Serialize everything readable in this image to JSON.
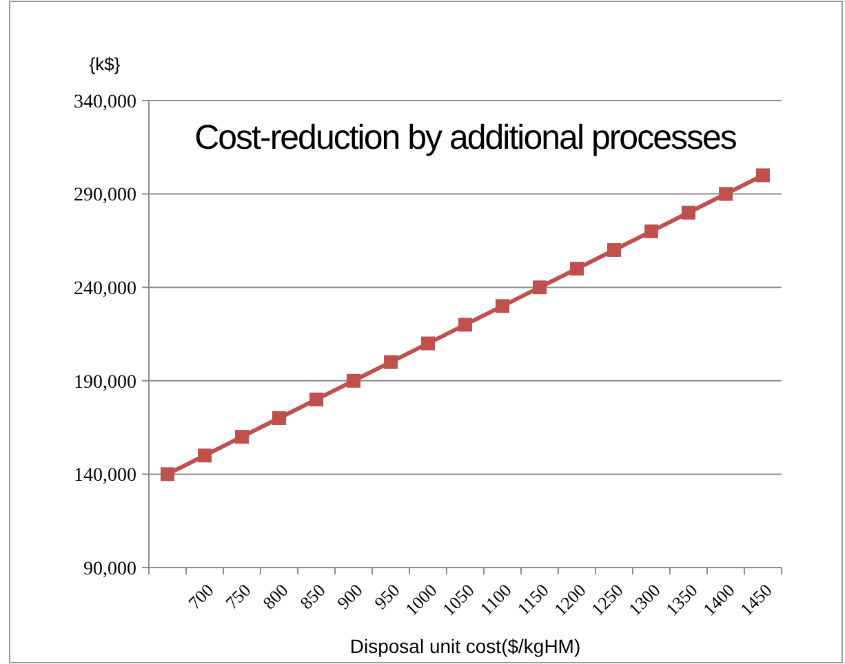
{
  "chart_data": {
    "type": "line",
    "title": "Cost-reduction by additional processes",
    "xlabel": "Disposal unit cost($/kgHM)",
    "ylabel": "{k$}",
    "categories": [
      null,
      "700",
      "750",
      "800",
      "850",
      "900",
      "950",
      "1000",
      "1050",
      "1100",
      "1150",
      "1200",
      "1250",
      "1300",
      "1350",
      "1400",
      "1450"
    ],
    "series": [
      {
        "color": "#c0504d",
        "values": [
          140000,
          150000,
          160000,
          170000,
          180000,
          190000,
          200000,
          210000,
          220000,
          230000,
          240000,
          250000,
          260000,
          270000,
          280000,
          290000,
          300000
        ]
      }
    ],
    "ylim": [
      90000,
      340000
    ],
    "yticks": [
      {
        "value": 90000,
        "label": "90,000"
      },
      {
        "value": 140000,
        "label": "140,000"
      },
      {
        "value": 190000,
        "label": "190,000"
      },
      {
        "value": 240000,
        "label": "240,000"
      },
      {
        "value": 290000,
        "label": "290,000"
      },
      {
        "value": 340000,
        "label": "340,000"
      }
    ],
    "grid": "y",
    "marker": "square",
    "line_style": "solid"
  }
}
